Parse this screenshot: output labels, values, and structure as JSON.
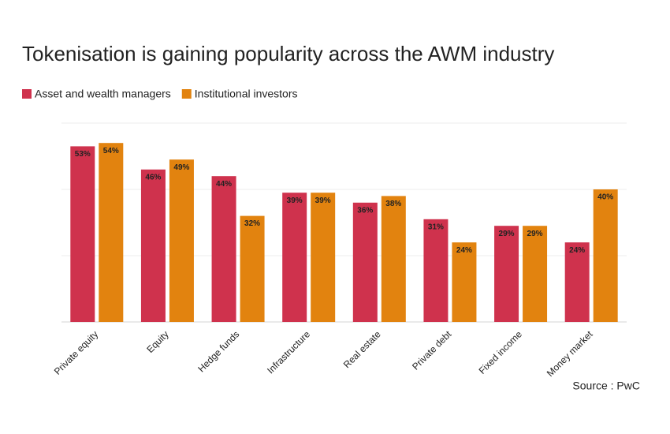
{
  "chart_data": {
    "type": "bar",
    "title": "Tokenisation is gaining popularity across the AWM industry",
    "categories": [
      "Private equity",
      "Equity",
      "Hedge funds",
      "Infrastructure",
      "Real estate",
      "Private debt",
      "Fixed income",
      "Money market"
    ],
    "series": [
      {
        "name": "Asset and wealth managers",
        "color": "#cf324d",
        "values": [
          53,
          46,
          44,
          39,
          36,
          31,
          29,
          24
        ],
        "value_labels": [
          "53%",
          "46%",
          "44%",
          "39%",
          "36%",
          "31%",
          "29%",
          "24%"
        ]
      },
      {
        "name": "Institutional investors",
        "color": "#e2830f",
        "values": [
          54,
          49,
          32,
          39,
          38,
          24,
          29,
          40
        ],
        "value_labels": [
          "54%",
          "49%",
          "32%",
          "39%",
          "38%",
          "24%",
          "29%",
          "40%"
        ]
      }
    ],
    "ylim": [
      0,
      60
    ],
    "yticks": [
      0,
      20,
      40,
      60
    ],
    "grid": true,
    "source": "Source : PwC"
  }
}
